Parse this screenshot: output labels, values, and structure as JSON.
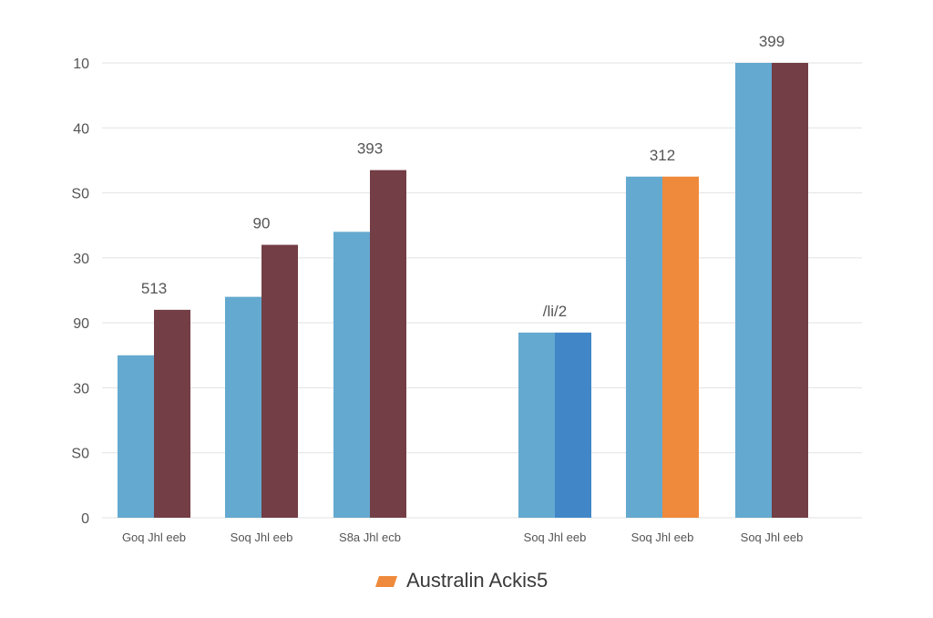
{
  "chart_data": {
    "type": "bar",
    "y_ticks": [
      "0",
      "S0",
      "30",
      "90",
      "30",
      "S0",
      "40",
      "10"
    ],
    "ylim": [
      0,
      70
    ],
    "grid": true,
    "legend_position": "bottom-center",
    "legend": [
      {
        "label": "Australin Ackis5",
        "color": "#ef8a3c"
      }
    ],
    "groups": [
      {
        "category": "Goq Jhl eeb",
        "label": "513",
        "bars": [
          {
            "value": 25,
            "color": "#64a9cf"
          },
          {
            "value": 32,
            "color": "#733e45"
          }
        ]
      },
      {
        "category": "Soq Jhl eeb",
        "label": "90",
        "bars": [
          {
            "value": 34,
            "color": "#64a9cf"
          },
          {
            "value": 42,
            "color": "#733e45"
          }
        ]
      },
      {
        "category": "S8a Jhl ecb",
        "label": "393",
        "bars": [
          {
            "value": 44,
            "color": "#64a9cf"
          },
          {
            "value": 53.5,
            "color": "#733e45"
          }
        ]
      },
      {
        "category": "Soq Jhl eeb",
        "label": "/li/2",
        "bars": [
          {
            "value": 28.5,
            "color": "#64a9cf"
          },
          {
            "value": 28.5,
            "color": "#4187c7"
          }
        ]
      },
      {
        "category": "Soq Jhl eeb",
        "label": "312",
        "bars": [
          {
            "value": 52.5,
            "color": "#64a9cf"
          },
          {
            "value": 52.5,
            "color": "#ef8a3c"
          }
        ]
      },
      {
        "category": "Soq Jhl eeb",
        "label": "399",
        "bars": [
          {
            "value": 70,
            "color": "#64a9cf"
          },
          {
            "value": 70,
            "color": "#733e45"
          }
        ]
      }
    ]
  }
}
